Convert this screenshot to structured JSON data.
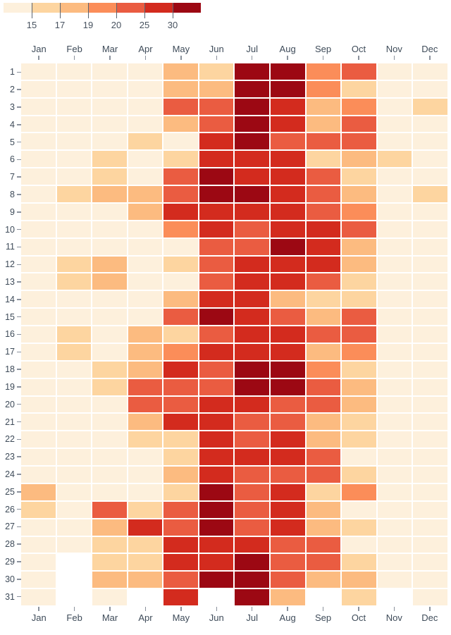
{
  "colors": {
    "background": "#ffffff",
    "axis_label": "#3e4b59",
    "axis_tick": "#8a919c",
    "legend_tick": "#5b6470"
  },
  "chart_data": {
    "type": "heatmap",
    "x_labels": [
      "Jan",
      "Feb",
      "Mar",
      "Apr",
      "May",
      "Jun",
      "Jul",
      "Aug",
      "Sep",
      "Oct",
      "Nov",
      "Dec"
    ],
    "y_labels": [
      "1",
      "2",
      "3",
      "4",
      "5",
      "6",
      "7",
      "8",
      "9",
      "10",
      "11",
      "12",
      "13",
      "14",
      "15",
      "16",
      "17",
      "18",
      "19",
      "20",
      "21",
      "22",
      "23",
      "24",
      "25",
      "26",
      "27",
      "28",
      "29",
      "30",
      "31"
    ],
    "colormap": {
      "colors": [
        "#fdf0dc",
        "#fdd5a0",
        "#fcbb80",
        "#fb8d59",
        "#ea5c41",
        "#d32b1e",
        "#9c0813"
      ],
      "tick_labels": [
        "15",
        "17",
        "19",
        "20",
        "25",
        "30"
      ],
      "thresholds": [
        15,
        17,
        19,
        20,
        25,
        30
      ],
      "bin_ranges": [
        "<15",
        "15-17",
        "17-19",
        "19-20",
        "20-25",
        "25-30",
        ">30"
      ]
    },
    "grid_bins_by_day": [
      [
        1,
        1,
        1,
        1,
        3,
        2,
        7,
        7,
        4,
        5,
        1,
        1
      ],
      [
        1,
        1,
        1,
        1,
        3,
        3,
        7,
        7,
        4,
        2,
        1,
        1
      ],
      [
        1,
        1,
        1,
        1,
        5,
        5,
        7,
        6,
        3,
        4,
        1,
        2
      ],
      [
        1,
        1,
        1,
        1,
        3,
        5,
        7,
        6,
        3,
        5,
        1,
        1
      ],
      [
        1,
        1,
        1,
        2,
        1,
        6,
        7,
        5,
        5,
        5,
        1,
        1
      ],
      [
        1,
        1,
        2,
        1,
        2,
        6,
        6,
        6,
        2,
        3,
        2,
        1
      ],
      [
        1,
        1,
        2,
        1,
        5,
        7,
        6,
        6,
        5,
        2,
        1,
        1
      ],
      [
        1,
        2,
        3,
        3,
        5,
        7,
        7,
        6,
        5,
        3,
        1,
        2
      ],
      [
        1,
        1,
        1,
        3,
        6,
        6,
        6,
        6,
        5,
        4,
        1,
        1
      ],
      [
        1,
        1,
        1,
        1,
        4,
        6,
        5,
        6,
        6,
        5,
        1,
        1
      ],
      [
        1,
        1,
        1,
        1,
        1,
        5,
        5,
        7,
        6,
        3,
        1,
        1
      ],
      [
        1,
        2,
        3,
        1,
        2,
        5,
        6,
        6,
        6,
        3,
        1,
        1
      ],
      [
        1,
        2,
        3,
        1,
        1,
        5,
        6,
        6,
        5,
        2,
        1,
        1
      ],
      [
        1,
        1,
        1,
        1,
        3,
        6,
        6,
        3,
        2,
        2,
        1,
        1
      ],
      [
        1,
        1,
        1,
        1,
        5,
        7,
        6,
        5,
        3,
        5,
        1,
        1
      ],
      [
        1,
        2,
        1,
        3,
        2,
        5,
        6,
        6,
        5,
        5,
        1,
        1
      ],
      [
        1,
        2,
        1,
        3,
        4,
        6,
        6,
        6,
        3,
        4,
        1,
        1
      ],
      [
        1,
        1,
        2,
        3,
        6,
        5,
        7,
        7,
        4,
        2,
        1,
        1
      ],
      [
        1,
        1,
        2,
        5,
        5,
        5,
        7,
        7,
        5,
        3,
        1,
        1
      ],
      [
        1,
        1,
        1,
        5,
        5,
        6,
        6,
        5,
        5,
        3,
        1,
        1
      ],
      [
        1,
        1,
        1,
        3,
        6,
        6,
        5,
        5,
        3,
        2,
        1,
        1
      ],
      [
        1,
        1,
        1,
        2,
        2,
        6,
        5,
        6,
        3,
        2,
        1,
        1
      ],
      [
        1,
        1,
        1,
        1,
        2,
        6,
        6,
        6,
        5,
        1,
        1,
        1
      ],
      [
        1,
        1,
        1,
        1,
        3,
        6,
        5,
        5,
        5,
        2,
        1,
        1
      ],
      [
        3,
        1,
        1,
        1,
        2,
        7,
        5,
        6,
        2,
        4,
        1,
        1
      ],
      [
        2,
        1,
        5,
        2,
        5,
        7,
        5,
        6,
        3,
        1,
        1,
        1
      ],
      [
        1,
        1,
        3,
        6,
        5,
        7,
        5,
        6,
        3,
        2,
        1,
        1
      ],
      [
        1,
        1,
        2,
        2,
        6,
        6,
        6,
        5,
        5,
        1,
        1,
        1
      ],
      [
        1,
        0,
        2,
        2,
        6,
        6,
        7,
        5,
        5,
        2,
        1,
        1
      ],
      [
        1,
        0,
        3,
        3,
        5,
        7,
        7,
        5,
        3,
        3,
        1,
        1
      ],
      [
        1,
        0,
        1,
        0,
        6,
        0,
        7,
        3,
        0,
        2,
        0,
        1
      ]
    ]
  }
}
